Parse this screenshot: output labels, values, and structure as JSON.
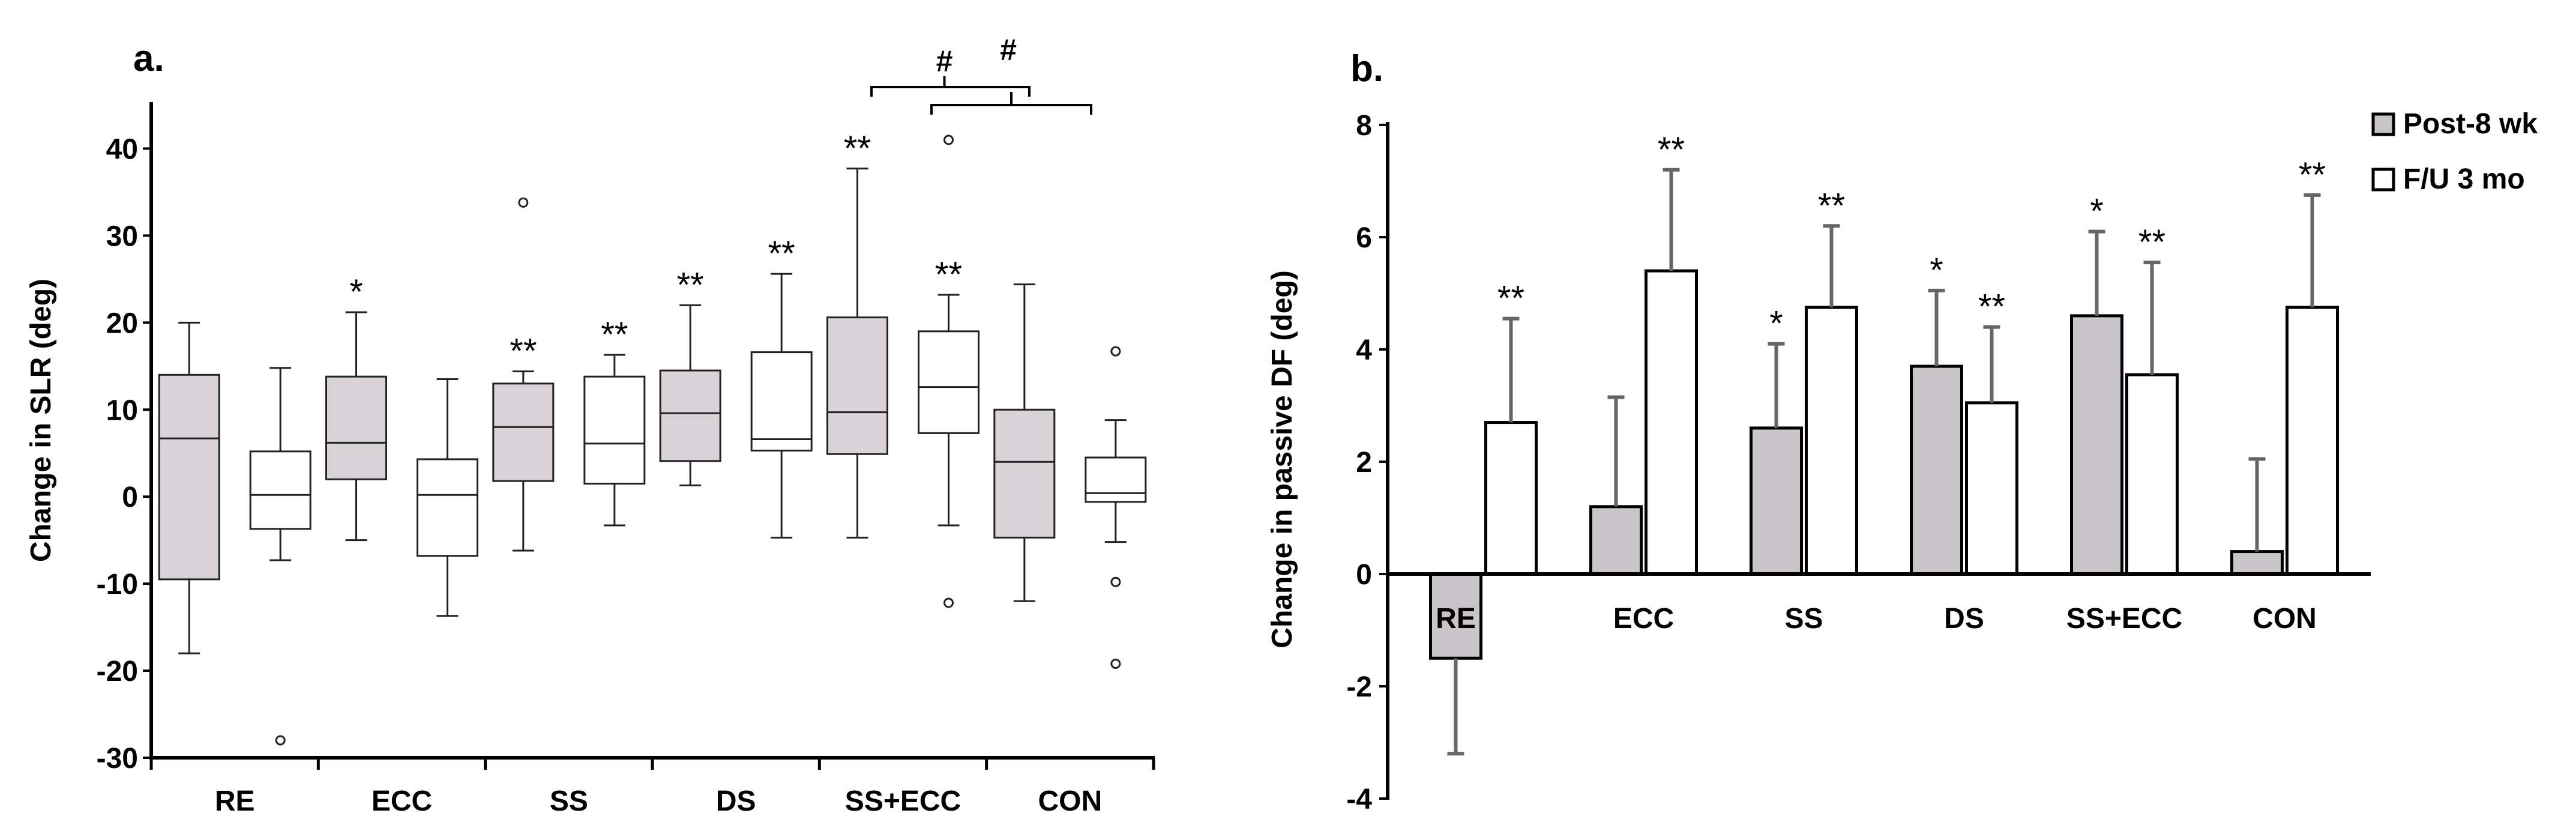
{
  "chart_data": [
    {
      "panel_label": "a.",
      "type": "box",
      "ylabel": "Change in SLR (deg)",
      "ylim": [
        -30,
        45
      ],
      "yticks": [
        -30,
        -20,
        -10,
        0,
        10,
        20,
        30,
        40
      ],
      "ytick_labels": [
        "-30",
        "-20",
        "-10",
        "0",
        "10",
        "20",
        "30",
        "40"
      ],
      "categories": [
        "RE",
        "ECC",
        "SS",
        "DS",
        "SS+ECC",
        "CON"
      ],
      "series_colors": [
        "#d9d3d7",
        "#ffffff"
      ],
      "groups": [
        {
          "category": "RE",
          "boxes": [
            {
              "min": -18,
              "q1": -9.5,
              "median": 6.7,
              "q3": 14,
              "max": 20,
              "outliers": [],
              "sig": ""
            },
            {
              "min": -7.3,
              "q1": -3.7,
              "median": 0.2,
              "q3": 5.2,
              "max": 14.8,
              "outliers": [
                -28
              ],
              "sig": ""
            }
          ]
        },
        {
          "category": "ECC",
          "boxes": [
            {
              "min": -5,
              "q1": 2,
              "median": 6.2,
              "q3": 13.8,
              "max": 21.2,
              "outliers": [],
              "sig": "*"
            },
            {
              "min": -13.7,
              "q1": -6.8,
              "median": 0.2,
              "q3": 4.3,
              "max": 13.5,
              "outliers": [],
              "sig": ""
            }
          ]
        },
        {
          "category": "SS",
          "boxes": [
            {
              "min": -6.2,
              "q1": 1.8,
              "median": 8,
              "q3": 13,
              "max": 14.4,
              "outliers": [
                33.8
              ],
              "sig": "**"
            },
            {
              "min": -3.3,
              "q1": 1.5,
              "median": 6.1,
              "q3": 13.8,
              "max": 16.3,
              "outliers": [],
              "sig": "**"
            }
          ]
        },
        {
          "category": "DS",
          "boxes": [
            {
              "min": 1.3,
              "q1": 4.1,
              "median": 9.6,
              "q3": 14.5,
              "max": 22,
              "outliers": [],
              "sig": "**"
            },
            {
              "min": -4.7,
              "q1": 5.3,
              "median": 6.6,
              "q3": 16.6,
              "max": 25.6,
              "outliers": [],
              "sig": "**"
            }
          ]
        },
        {
          "category": "SS+ECC",
          "boxes": [
            {
              "min": -4.7,
              "q1": 4.9,
              "median": 9.7,
              "q3": 20.6,
              "max": 37.7,
              "outliers": [],
              "sig": "**"
            },
            {
              "min": -3.3,
              "q1": 7.3,
              "median": 12.6,
              "q3": 19,
              "max": 23.2,
              "outliers": [
                41,
                -12.2
              ],
              "sig": "**"
            }
          ]
        },
        {
          "category": "CON",
          "boxes": [
            {
              "min": -12,
              "q1": -4.7,
              "median": 4,
              "q3": 10,
              "max": 24.4,
              "outliers": [],
              "sig": ""
            },
            {
              "min": -5.2,
              "q1": -0.6,
              "median": 0.4,
              "q3": 4.5,
              "max": 8.8,
              "outliers": [
                16.7,
                -9.8,
                -19.2
              ],
              "sig": ""
            }
          ]
        }
      ],
      "brackets": [
        {
          "label": "#",
          "from": "SS+ECC (post-8 wk)",
          "to": "CON"
        },
        {
          "label": "#",
          "from": "SS+ECC (F/U 3 mo)",
          "to": "CON"
        }
      ]
    },
    {
      "panel_label": "b.",
      "type": "bar",
      "ylabel": "Change in passive DF (deg)",
      "ylim": [
        -4,
        8
      ],
      "yticks": [
        -4,
        -2,
        0,
        2,
        4,
        6,
        8
      ],
      "ytick_labels": [
        "-4",
        "-2",
        "0",
        "2",
        "4",
        "6",
        "8"
      ],
      "categories": [
        "RE",
        "ECC",
        "SS",
        "DS",
        "SS+ECC",
        "CON"
      ],
      "series": [
        {
          "name": "Post-8 wk",
          "color": "#c8c4c8",
          "values": [
            -1.5,
            1.2,
            2.6,
            3.7,
            4.6,
            0.4
          ],
          "errors": [
            1.7,
            1.95,
            1.5,
            1.35,
            1.5,
            1.65
          ],
          "sig": [
            "",
            "",
            "*",
            "*",
            "*",
            ""
          ]
        },
        {
          "name": "F/U 3 mo",
          "color": "#ffffff",
          "values": [
            2.7,
            5.4,
            4.75,
            3.05,
            3.55,
            4.75
          ],
          "errors": [
            1.85,
            1.8,
            1.45,
            1.35,
            2.0,
            2.0
          ],
          "sig": [
            "**",
            "**",
            "**",
            "**",
            "**",
            "**"
          ]
        }
      ]
    }
  ]
}
